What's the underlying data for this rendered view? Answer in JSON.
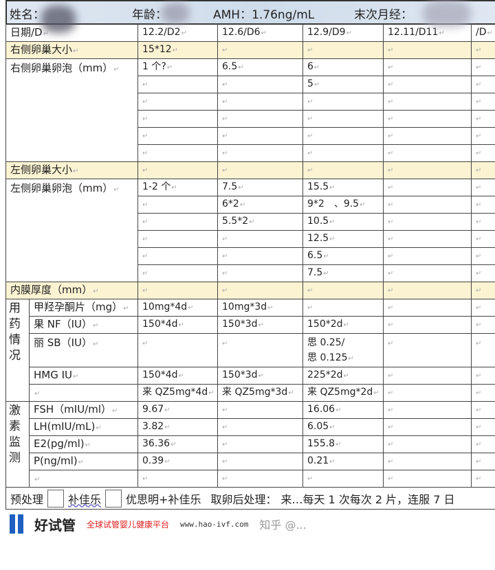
{
  "header": {
    "name_label": "姓名：",
    "age_label": "年龄：",
    "amh": "AMH：1.76ng/mL",
    "lmp_label": "末次月经："
  },
  "date_row": {
    "label": "日期/D",
    "values": [
      "12.2/D2",
      "12.6/D6",
      "12.9/D9",
      "12.11/D11",
      "/D"
    ]
  },
  "right_ovary_size": {
    "label": "右侧卵巢大小",
    "values": [
      "15*12",
      "",
      "",
      "",
      ""
    ]
  },
  "right_follicles": {
    "label": "右侧卵巢卵泡（mm）",
    "rows": [
      [
        "1 个?",
        "6.5",
        "6",
        "",
        ""
      ],
      [
        "",
        "",
        "5",
        "",
        ""
      ],
      [
        "",
        "",
        "",
        "",
        ""
      ],
      [
        "",
        "",
        "",
        "",
        ""
      ],
      [
        "",
        "",
        "",
        "",
        ""
      ],
      [
        "",
        "",
        "",
        "",
        ""
      ]
    ]
  },
  "left_ovary_size": {
    "label": "左侧卵巢大小",
    "values": [
      "",
      "",
      "",
      "",
      ""
    ]
  },
  "left_follicles": {
    "label": "左侧卵巢卵泡（mm）",
    "rows": [
      [
        "1-2 个",
        "7.5",
        "15.5",
        "",
        ""
      ],
      [
        "",
        "6*2",
        "9*2　、9.5",
        "",
        ""
      ],
      [
        "",
        "5.5*2",
        "10.5",
        "",
        ""
      ],
      [
        "",
        "",
        "12.5",
        "",
        ""
      ],
      [
        "",
        "",
        "6.5",
        "",
        ""
      ],
      [
        "",
        "",
        "7.5",
        "",
        ""
      ]
    ]
  },
  "endometrium": {
    "label": "内膜厚度（mm）",
    "values": [
      "",
      "",
      "",
      "",
      ""
    ]
  },
  "medication": {
    "group": "用药情况",
    "items": [
      {
        "label": "甲羟孕酮片（mg）",
        "values": [
          "10mg*4d",
          "10mg*3d",
          "",
          "",
          ""
        ]
      },
      {
        "label": "果 NF（IU）",
        "values": [
          "150*4d",
          "150*3d",
          "150*2d",
          "",
          ""
        ]
      },
      {
        "label": "丽 SB（IU）",
        "values": [
          "",
          "",
          "思 0.25/\n思 0.125",
          "",
          ""
        ]
      },
      {
        "label": "HMG IU",
        "values": [
          "150*4d",
          "150*3d",
          "225*2d",
          "",
          ""
        ]
      },
      {
        "label": "",
        "values": [
          "来 QZ5mg*4d",
          "来 QZ5mg*3d",
          "来 QZ5mg*2d",
          "",
          ""
        ]
      }
    ]
  },
  "hormones": {
    "group": "激素监测",
    "items": [
      {
        "label": "FSH（mIU/ml）",
        "values": [
          "9.67",
          "",
          "16.06",
          "",
          ""
        ]
      },
      {
        "label": "LH(mIU/mL)",
        "values": [
          "3.82",
          "",
          "6.05",
          "",
          ""
        ]
      },
      {
        "label": "E2(pg/ml)",
        "values": [
          "36.36",
          "",
          "155.8",
          "",
          ""
        ]
      },
      {
        "label": "P(ng/ml)",
        "values": [
          "0.39",
          "",
          "0.21",
          "",
          ""
        ]
      },
      {
        "label": "",
        "values": [
          "",
          "",
          "",
          "",
          ""
        ]
      }
    ]
  },
  "footer": {
    "pretreatment": "预处理",
    "option1": "补佳乐",
    "option2": "优思明+补佳乐",
    "post_retrieval": "取卵后处理：",
    "instruction": "来…每天 1 次每次 2 片，连服 7 日"
  },
  "watermark": {
    "logo_name": "好试管",
    "slogan": "全球试管婴儿健康平台",
    "url": "www.hao-ivf.com",
    "zhihu": "知乎 @..."
  }
}
